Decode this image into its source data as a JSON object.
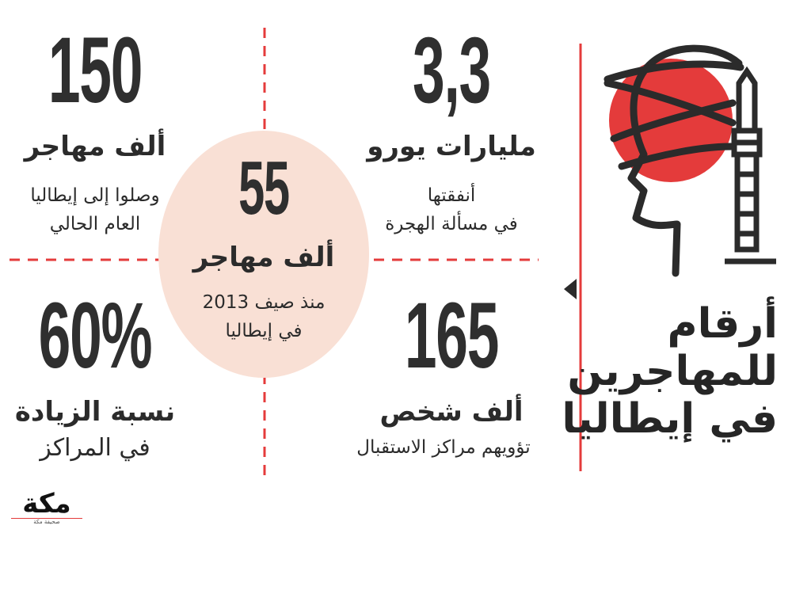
{
  "title": [
    "أرقام",
    "للمهاجرين",
    "في إيطاليا"
  ],
  "stats": {
    "cost": {
      "value": "3,3",
      "label": "مليارات يورو",
      "line1": "أنفقتها",
      "line2": "في مسألة الهجرة"
    },
    "arrived": {
      "value": "150",
      "label": "ألف مهاجر",
      "line1": "وصلوا إلى إيطاليا",
      "line2": "العام الحالي"
    },
    "center": {
      "value": "55",
      "label": "ألف مهاجر",
      "line1": "منذ صيف 2013",
      "line2": "في إيطاليا"
    },
    "housed": {
      "value": "165",
      "label": "ألف شخص",
      "line1": "تؤويهم مراكز الاستقبال"
    },
    "increase": {
      "value": "60%",
      "label": "نسبة الزيادة",
      "line1": "في المراكز"
    }
  },
  "logo": {
    "text": "مكة",
    "tagline": "صحيفة مكة"
  },
  "colors": {
    "accent": "#e43b3b",
    "circle": "#f9e0d5",
    "dark": "#2b2b2b"
  },
  "icons": [
    "head-profile-icon",
    "tower-icon"
  ]
}
